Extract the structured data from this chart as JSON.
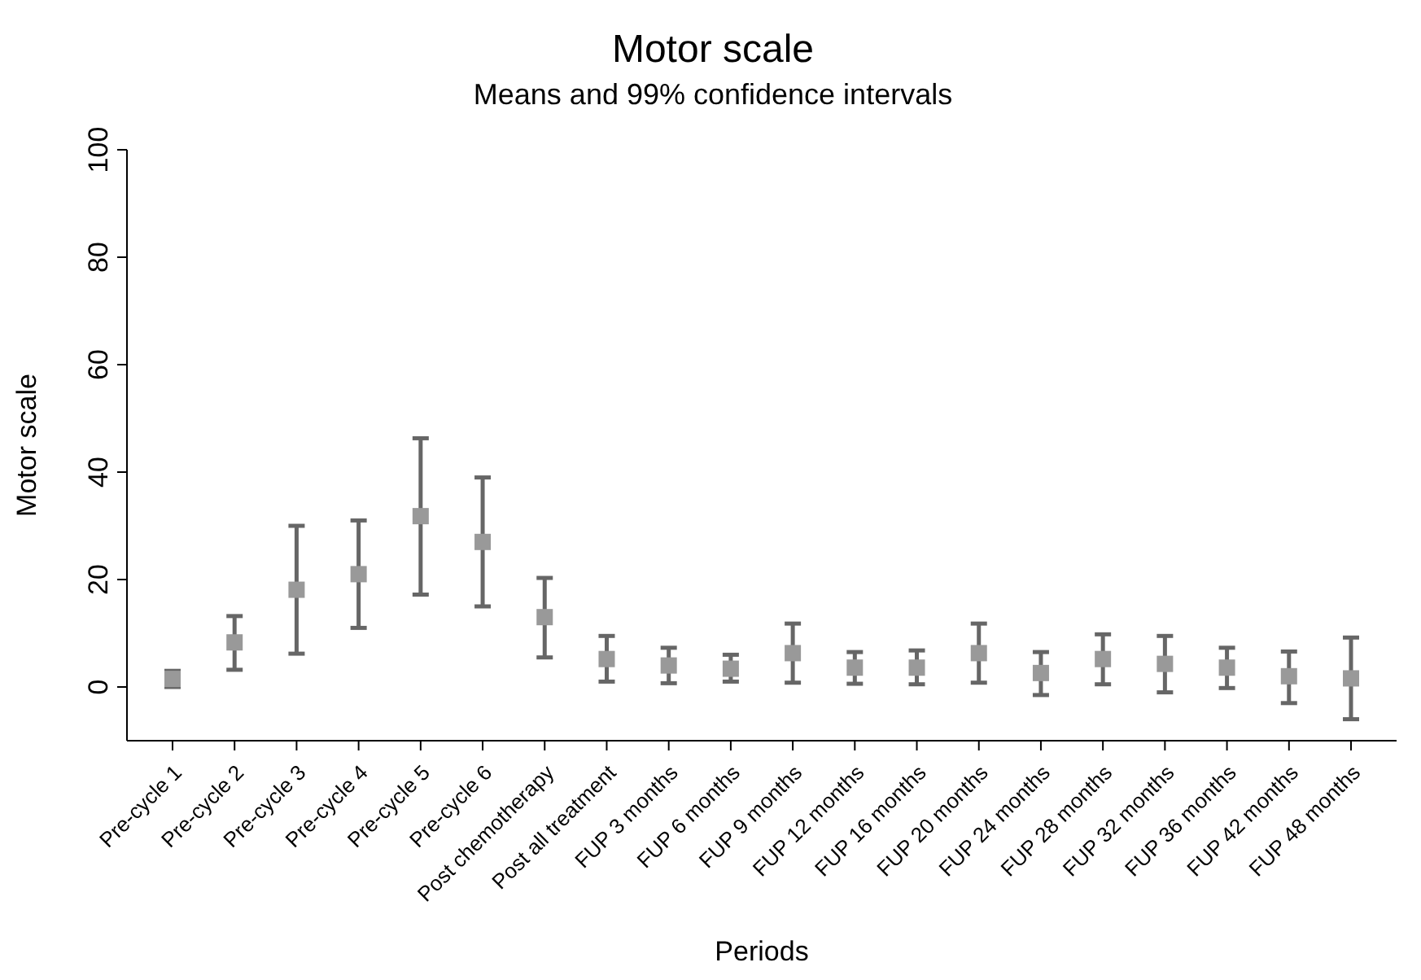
{
  "chart_data": {
    "type": "scatter",
    "title": "Motor scale",
    "subtitle": "Means and 99% confidence intervals",
    "xlabel": "Periods",
    "ylabel": "Motor scale",
    "categories": [
      "Pre-cycle 1",
      "Pre-cycle 2",
      "Pre-cycle 3",
      "Pre-cycle 4",
      "Pre-cycle 5",
      "Pre-cycle 6",
      "Post chemotherapy",
      "Post all treatment",
      "FUP 3 months",
      "FUP 6 months",
      "FUP 9 months",
      "FUP 12 months",
      "FUP 16 months",
      "FUP 20 months",
      "FUP 24 months",
      "FUP 28 months",
      "FUP 32 months",
      "FUP 36 months",
      "FUP 42 months",
      "FUP 48 months"
    ],
    "series": [
      {
        "color": "#999999",
        "values": [
          1.5,
          8.3,
          18.1,
          21,
          31.8,
          27,
          13,
          5.2,
          4,
          3.4,
          6.3,
          3.6,
          3.6,
          6.3,
          2.6,
          5.2,
          4.3,
          3.6,
          2,
          1.6
        ],
        "errors": [
          [
            0,
            3
          ],
          [
            3.2,
            13.2
          ],
          [
            6.2,
            30
          ],
          [
            11,
            31
          ],
          [
            17.2,
            46.3
          ],
          [
            15,
            39
          ],
          [
            5.5,
            20.3
          ],
          [
            1,
            9.5
          ],
          [
            0.7,
            7.3
          ],
          [
            1,
            6
          ],
          [
            0.8,
            11.8
          ],
          [
            0.6,
            6.5
          ],
          [
            0.5,
            6.8
          ],
          [
            0.8,
            11.8
          ],
          [
            -1.5,
            6.5
          ],
          [
            0.5,
            9.8
          ],
          [
            -1,
            9.5
          ],
          [
            -0.2,
            7.3
          ],
          [
            -3,
            6.6
          ],
          [
            -6,
            9.2
          ]
        ]
      }
    ],
    "marker": "square",
    "ylim": [
      -10,
      100
    ],
    "yticks": [
      0,
      20,
      40,
      60,
      80,
      100
    ]
  }
}
